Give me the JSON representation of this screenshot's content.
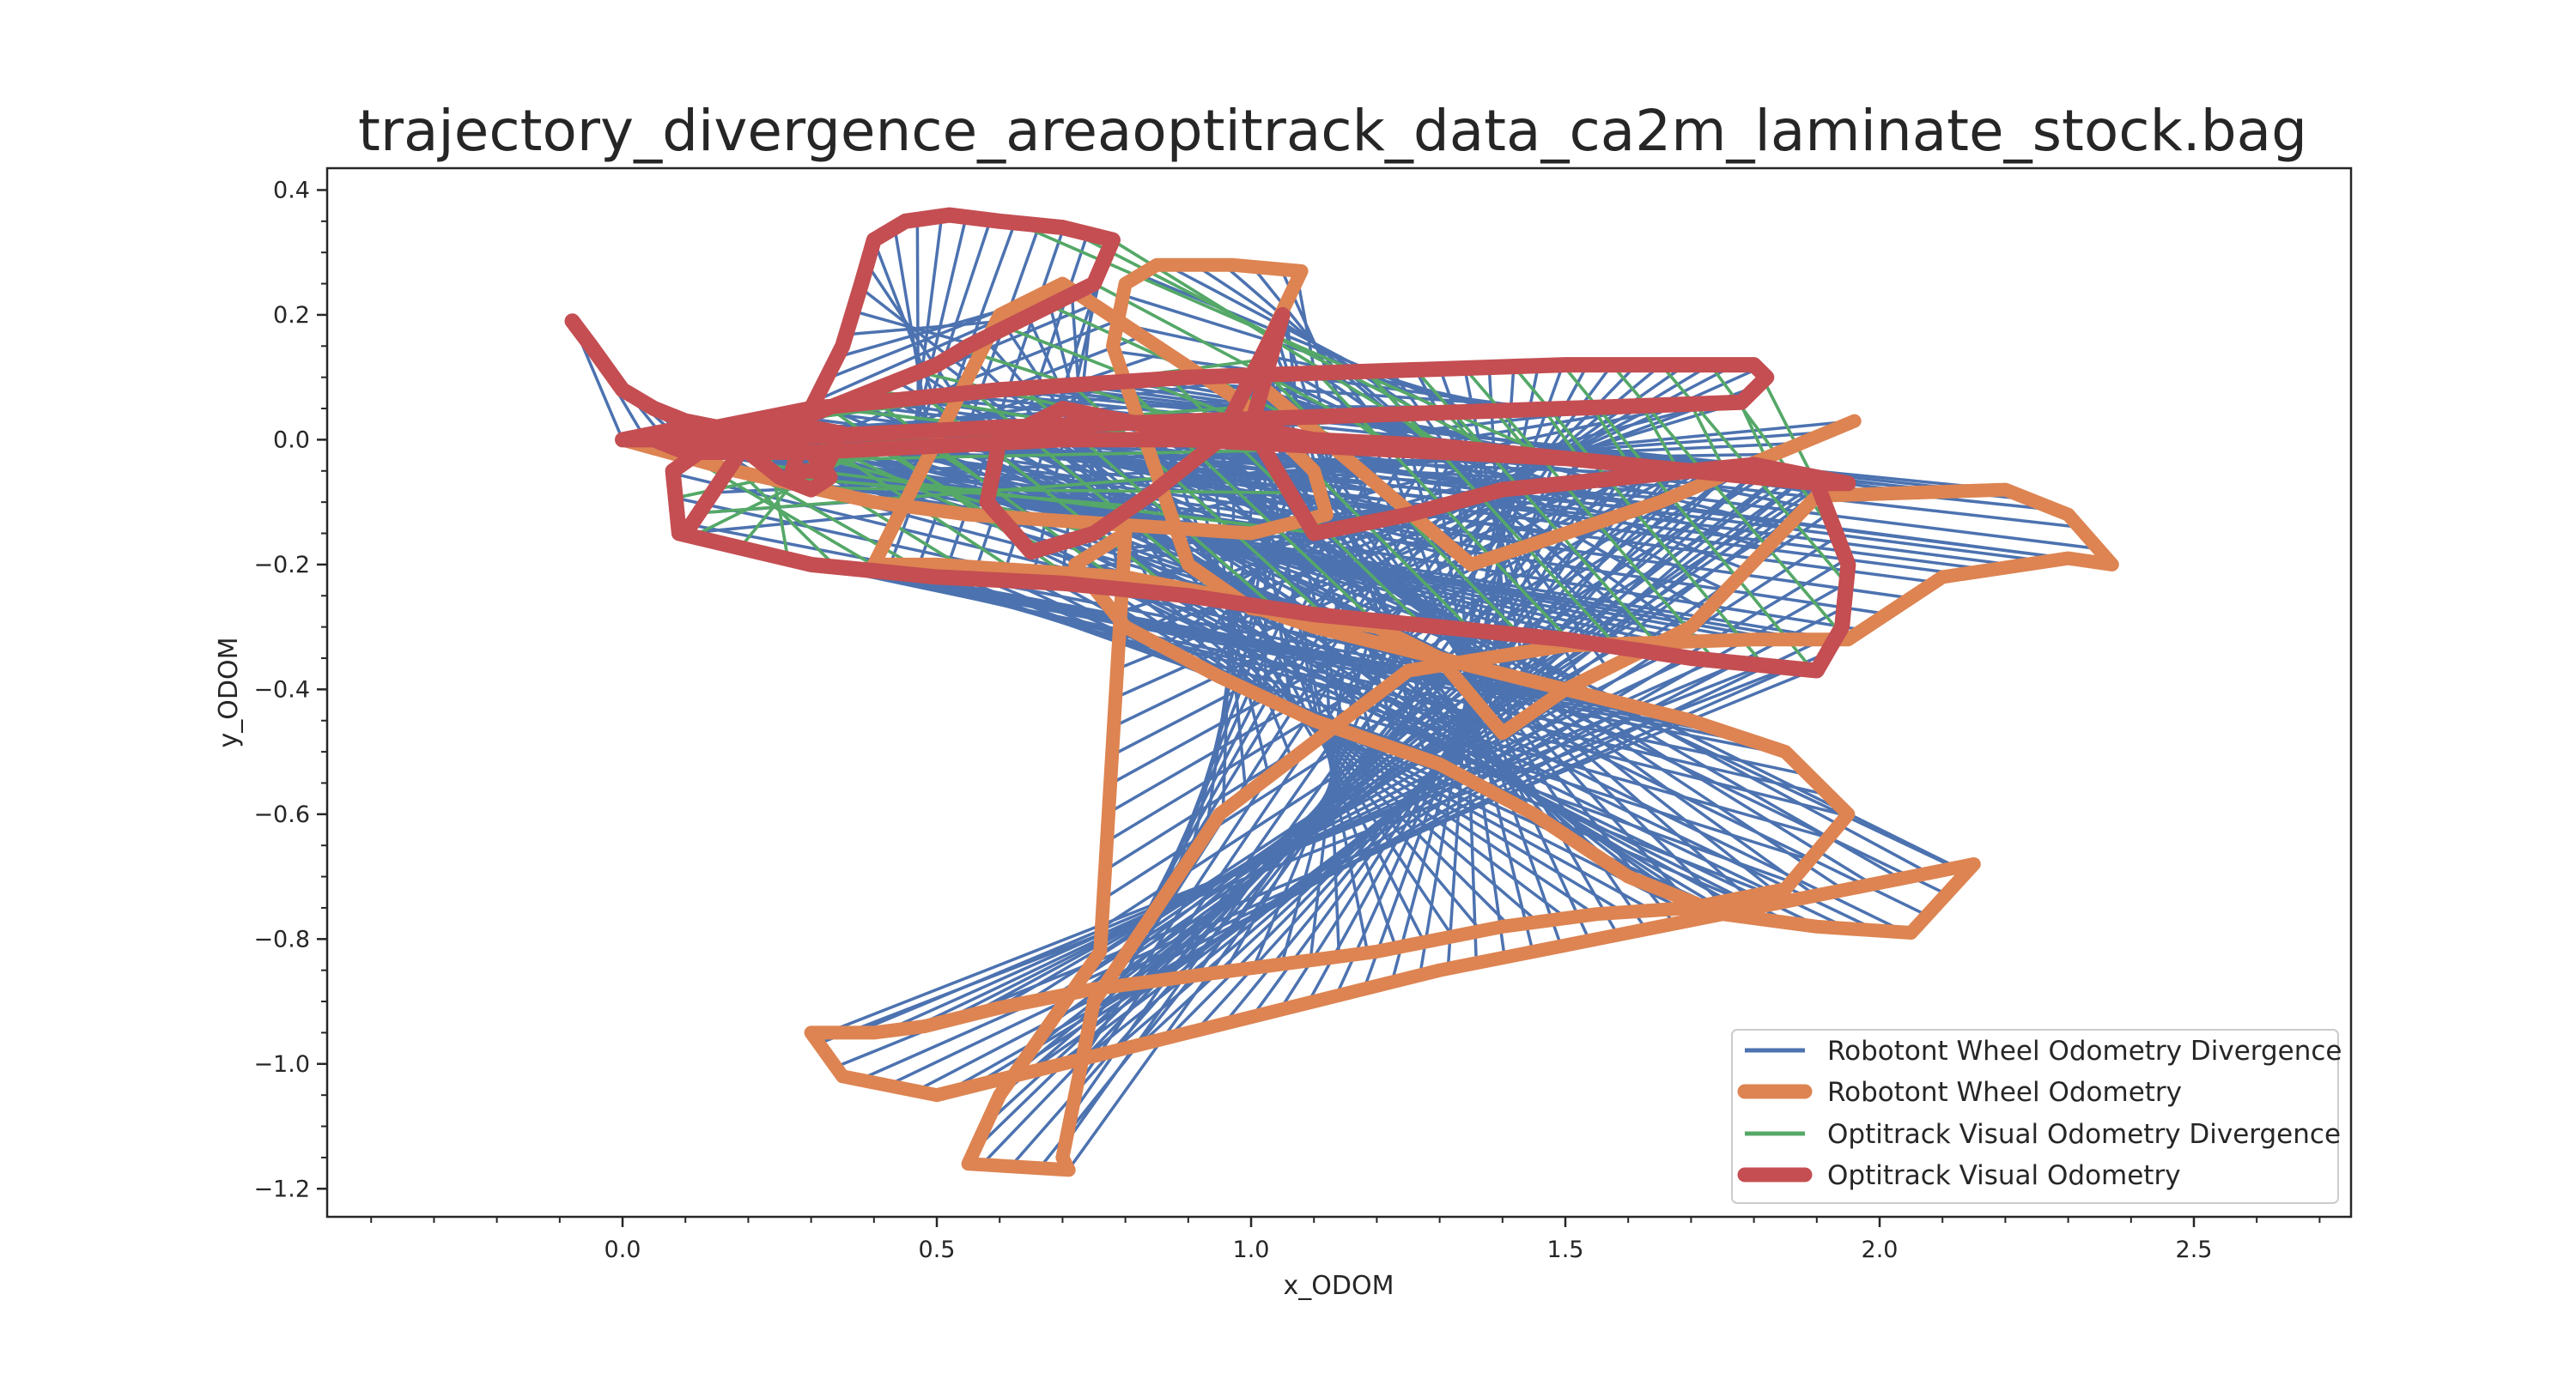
{
  "chart_data": {
    "type": "line",
    "title": "trajectory_divergence_areaoptitrack_data_ca2m_laminate_stock.bag",
    "xlabel": "x_ODOM",
    "ylabel": "y_ODOM",
    "xlim": [
      -0.47,
      2.75
    ],
    "ylim": [
      -1.245,
      0.435
    ],
    "xticks": [
      0.0,
      0.5,
      1.0,
      1.5,
      2.0,
      2.5
    ],
    "xtick_labels": [
      "0.0",
      "0.5",
      "1.0",
      "1.5",
      "2.0",
      "2.5"
    ],
    "yticks": [
      0.4,
      0.2,
      0.0,
      -0.2,
      -0.4,
      -0.6,
      -0.8,
      -1.0,
      -1.2
    ],
    "ytick_labels": [
      "0.4",
      "0.2",
      "0.0",
      "−0.2",
      "−0.4",
      "−0.6",
      "−0.8",
      "−1.0",
      "−1.2"
    ],
    "grid": false,
    "legend_position": "lower-right",
    "legend": [
      "Robotont Wheel Odometry Divergence",
      "Robotont Wheel Odometry",
      "Optitrack Visual Odometry Divergence",
      "Optitrack Visual Odometry"
    ],
    "colors": {
      "wheel_divergence": "#4c72b0",
      "wheel": "#dd8452",
      "optitrack_divergence": "#55a868",
      "optitrack": "#c44e52"
    },
    "series": [
      {
        "name": "Robotont Wheel Odometry",
        "x": [
          0.0,
          0.18,
          0.4,
          0.55,
          0.7,
          0.85,
          1.0,
          1.12,
          1.1,
          1.0,
          0.85,
          0.7,
          0.6,
          0.55,
          0.4,
          0.5,
          0.65,
          0.8,
          0.95,
          1.1,
          1.3,
          1.5,
          1.7,
          1.85,
          1.95,
          1.85,
          1.7,
          1.55,
          1.4,
          1.3,
          1.2,
          1.05,
          0.9,
          0.75,
          0.6,
          0.48,
          0.4,
          0.3,
          0.35,
          0.5,
          0.7,
          0.9,
          1.1,
          1.3,
          1.5,
          1.7,
          1.9,
          2.05,
          2.15,
          2.05,
          1.9,
          1.75,
          1.6,
          1.45,
          1.3,
          1.1,
          0.95,
          0.8,
          0.72,
          0.8,
          0.76,
          0.6,
          0.55,
          0.71,
          0.7,
          0.75,
          0.95,
          1.25,
          1.5,
          1.8,
          1.95,
          2.1,
          2.3,
          2.37,
          2.3,
          2.2,
          1.9,
          1.7,
          1.5,
          1.4,
          1.3,
          1.2,
          1.0,
          0.9,
          0.78,
          0.8,
          0.85,
          0.97,
          1.08,
          1.0,
          1.35,
          1.65,
          1.96
        ],
        "y": [
          0.0,
          -0.05,
          -0.1,
          -0.12,
          -0.13,
          -0.14,
          -0.15,
          -0.12,
          -0.05,
          0.05,
          0.15,
          0.25,
          0.2,
          0.1,
          -0.2,
          -0.2,
          -0.21,
          -0.22,
          -0.25,
          -0.3,
          -0.35,
          -0.4,
          -0.45,
          -0.5,
          -0.6,
          -0.72,
          -0.75,
          -0.76,
          -0.78,
          -0.8,
          -0.82,
          -0.84,
          -0.86,
          -0.88,
          -0.91,
          -0.94,
          -0.95,
          -0.95,
          -1.02,
          -1.05,
          -1.0,
          -0.95,
          -0.9,
          -0.85,
          -0.81,
          -0.77,
          -0.73,
          -0.7,
          -0.68,
          -0.79,
          -0.78,
          -0.76,
          -0.7,
          -0.6,
          -0.52,
          -0.45,
          -0.38,
          -0.3,
          -0.2,
          -0.15,
          -0.82,
          -1.05,
          -1.16,
          -1.17,
          -1.15,
          -0.9,
          -0.6,
          -0.37,
          -0.33,
          -0.32,
          -0.32,
          -0.22,
          -0.19,
          -0.2,
          -0.12,
          -0.08,
          -0.09,
          -0.3,
          -0.4,
          -0.47,
          -0.35,
          -0.3,
          -0.27,
          -0.2,
          0.15,
          0.25,
          0.28,
          0.28,
          0.27,
          0.1,
          -0.2,
          -0.1,
          0.03
        ]
      },
      {
        "name": "Optitrack Visual Odometry",
        "x": [
          -0.08,
          -0.05,
          0.0,
          0.05,
          0.1,
          0.2,
          0.3,
          0.33,
          0.3,
          0.25,
          0.2,
          0.1,
          0.0,
          0.05,
          0.1,
          0.2,
          0.3,
          0.35,
          0.32,
          0.27,
          0.3,
          0.35,
          0.38,
          0.4,
          0.45,
          0.52,
          0.6,
          0.7,
          0.78,
          0.75,
          0.65,
          0.55,
          0.5,
          0.45,
          0.4,
          0.35,
          0.3,
          0.25,
          0.15,
          0.08,
          0.09,
          0.3,
          0.5,
          0.7,
          0.9,
          1.1,
          1.3,
          1.5,
          1.7,
          1.9,
          1.94,
          1.95,
          1.9,
          1.7,
          1.5,
          1.3,
          1.1,
          1.0,
          0.85,
          0.7,
          0.6,
          0.58,
          0.65,
          0.75,
          0.85,
          0.95,
          1.0,
          1.05,
          1.0,
          1.1,
          1.25,
          1.4,
          1.6,
          1.8,
          1.95,
          1.9,
          1.7,
          1.5,
          1.3,
          1.1,
          0.9,
          0.7,
          0.5,
          0.3,
          0.1,
          0.05,
          0.3,
          0.6,
          0.9,
          1.2,
          1.5,
          1.8,
          1.82,
          1.78,
          1.5,
          1.2,
          0.9,
          0.6,
          0.4,
          0.2,
          0.1
        ],
        "y": [
          0.19,
          0.15,
          0.08,
          0.05,
          0.03,
          0.01,
          -0.02,
          -0.06,
          -0.08,
          -0.06,
          -0.02,
          0.0,
          0.0,
          0.01,
          0.02,
          0.02,
          0.02,
          0.01,
          -0.05,
          -0.05,
          0.05,
          0.15,
          0.25,
          0.32,
          0.35,
          0.36,
          0.35,
          0.34,
          0.32,
          0.25,
          0.2,
          0.15,
          0.12,
          0.1,
          0.08,
          0.06,
          0.04,
          0.02,
          0.0,
          -0.05,
          -0.15,
          -0.2,
          -0.22,
          -0.23,
          -0.25,
          -0.28,
          -0.3,
          -0.32,
          -0.35,
          -0.37,
          -0.3,
          -0.2,
          -0.07,
          -0.05,
          -0.03,
          -0.01,
          0.0,
          0.02,
          0.02,
          0.05,
          0.0,
          -0.1,
          -0.18,
          -0.15,
          -0.08,
          0.0,
          0.1,
          0.2,
          0.02,
          -0.15,
          -0.12,
          -0.08,
          -0.06,
          -0.04,
          -0.07,
          -0.07,
          -0.05,
          -0.03,
          -0.02,
          -0.01,
          0.0,
          0.0,
          -0.01,
          -0.02,
          -0.02,
          0.0,
          0.05,
          0.08,
          0.1,
          0.11,
          0.12,
          0.12,
          0.1,
          0.06,
          0.05,
          0.04,
          0.03,
          0.02,
          0.01,
          0.0,
          -0.15
        ]
      }
    ]
  }
}
